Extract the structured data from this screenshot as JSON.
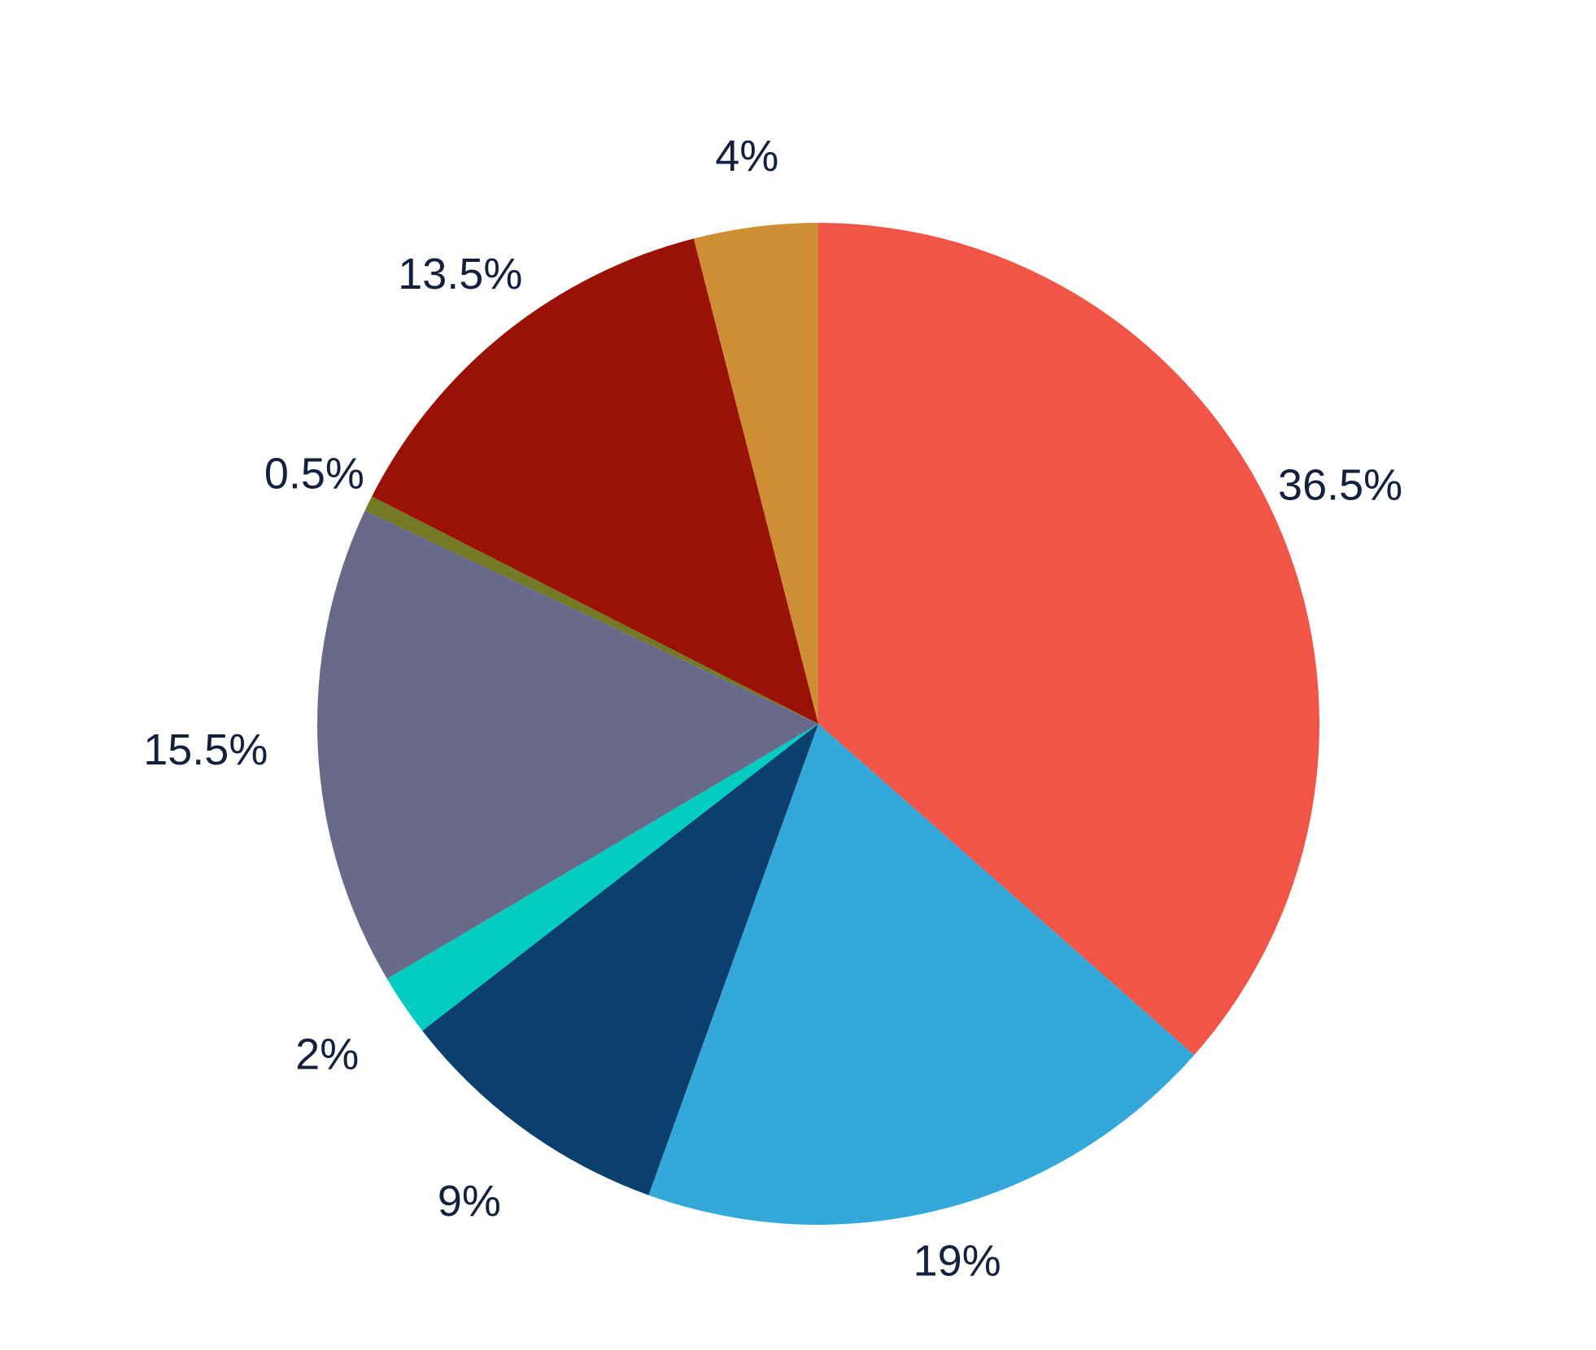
{
  "chart_data": {
    "type": "pie",
    "title": "",
    "start_angle_deg": 0,
    "direction": "clockwise",
    "slices": [
      {
        "label": "36.5%",
        "value": 36.5,
        "color": "#F05547"
      },
      {
        "label": "19%",
        "value": 19,
        "color": "#34A8D8"
      },
      {
        "label": "9%",
        "value": 9,
        "color": "#0B3F6E"
      },
      {
        "label": "2%",
        "value": 2,
        "color": "#00CCC0"
      },
      {
        "label": "15.5%",
        "value": 15.5,
        "color": "#696A8A"
      },
      {
        "label": "0.5%",
        "value": 0.5,
        "color": "#747A24"
      },
      {
        "label": "13.5%",
        "value": 13.5,
        "color": "#9A1108"
      },
      {
        "label": "4%",
        "value": 4,
        "color": "#CD8E34"
      }
    ]
  }
}
